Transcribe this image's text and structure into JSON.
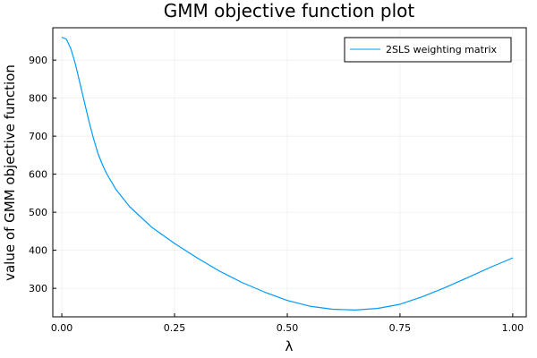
{
  "chart_data": {
    "type": "line",
    "title": "GMM objective function plot",
    "xlabel": "λ",
    "ylabel": "value of GMM objective function",
    "xlim": [
      -0.02,
      1.03
    ],
    "ylim": [
      225,
      985
    ],
    "x_ticks": [
      0.0,
      0.25,
      0.5,
      0.75,
      1.0
    ],
    "x_tick_labels": [
      "0.00",
      "0.25",
      "0.50",
      "0.75",
      "1.00"
    ],
    "y_ticks": [
      300,
      400,
      500,
      600,
      700,
      800,
      900
    ],
    "y_tick_labels": [
      "300",
      "400",
      "500",
      "600",
      "700",
      "800",
      "900"
    ],
    "grid": true,
    "legend_position": "top-right",
    "series": [
      {
        "name": "2SLS weighting matrix",
        "color": "#009AFA",
        "x": [
          0.0,
          0.01,
          0.02,
          0.03,
          0.04,
          0.05,
          0.06,
          0.07,
          0.08,
          0.09,
          0.1,
          0.12,
          0.15,
          0.2,
          0.25,
          0.3,
          0.35,
          0.4,
          0.45,
          0.5,
          0.55,
          0.6,
          0.65,
          0.7,
          0.75,
          0.8,
          0.85,
          0.9,
          0.95,
          1.0
        ],
        "y": [
          960,
          955,
          930,
          890,
          840,
          790,
          740,
          695,
          655,
          625,
          600,
          560,
          515,
          460,
          418,
          380,
          345,
          315,
          290,
          268,
          253,
          245,
          243,
          247,
          258,
          278,
          302,
          328,
          355,
          380
        ]
      }
    ]
  }
}
